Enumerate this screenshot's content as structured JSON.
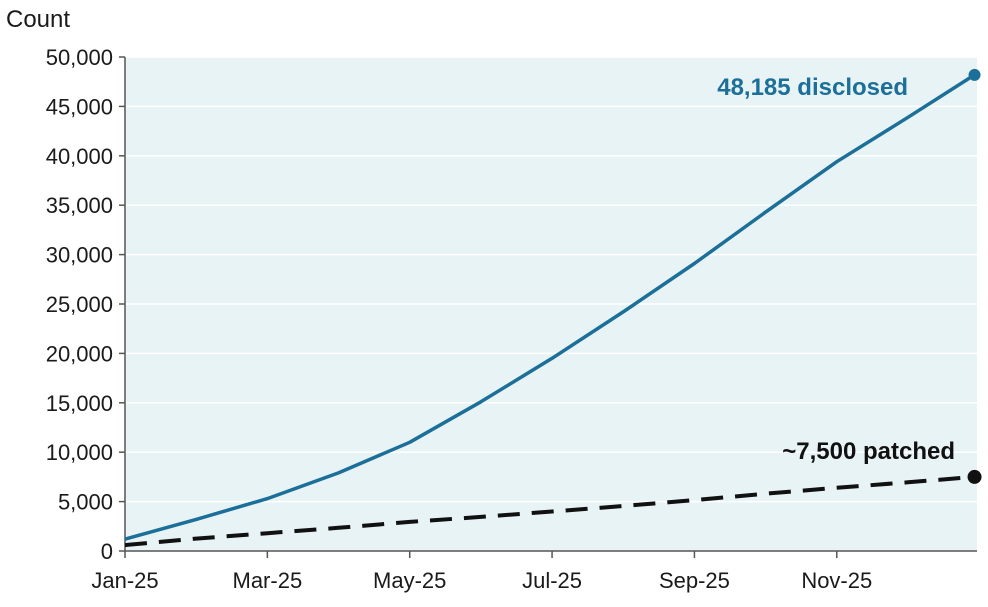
{
  "chart_data": {
    "type": "line",
    "ylabel": "Count",
    "xlabel": "",
    "ylim": [
      0,
      50000
    ],
    "yticks": [
      0,
      5000,
      10000,
      15000,
      20000,
      25000,
      30000,
      35000,
      40000,
      45000,
      50000
    ],
    "ytick_labels": [
      "0",
      "5,000",
      "10,000",
      "15,000",
      "20,000",
      "25,000",
      "30,000",
      "35,000",
      "40,000",
      "45,000",
      "50,000"
    ],
    "xlim": [
      "2025-01",
      "2025-12"
    ],
    "xticks": [
      "2025-01",
      "2025-03",
      "2025-05",
      "2025-07",
      "2025-09",
      "2025-11"
    ],
    "xtick_labels": [
      "Jan-25",
      "Mar-25",
      "May-25",
      "Jul-25",
      "Sep-25",
      "Nov-25"
    ],
    "grid": true,
    "colors": {
      "plot_background": "#e8f3f6",
      "grid": "#ffffff",
      "disclosed": "#1b6f98",
      "patched": "#111111"
    },
    "series": [
      {
        "key": "disclosed",
        "style": "solid",
        "x": [
          "2025-01",
          "2025-02",
          "2025-03",
          "2025-04",
          "2025-05",
          "2025-06",
          "2025-07",
          "2025-08",
          "2025-09",
          "2025-10",
          "2025-11",
          "2025-12"
        ],
        "values": [
          1200,
          3200,
          5300,
          7900,
          11000,
          15100,
          19500,
          24200,
          29100,
          34300,
          39400,
          43900
        ]
      },
      {
        "key": "patched",
        "style": "dashed",
        "x": [
          "2025-01",
          "2025-02",
          "2025-03",
          "2025-04",
          "2025-05",
          "2025-06",
          "2025-07",
          "2025-08",
          "2025-09",
          "2025-10",
          "2025-11",
          "2025-12"
        ],
        "values": [
          600,
          1250,
          1800,
          2350,
          2950,
          3450,
          4000,
          4550,
          5150,
          5800,
          6400,
          6950
        ]
      }
    ],
    "endpoints": [
      {
        "series": "disclosed",
        "x": "2025-12-30",
        "y": 48185
      },
      {
        "series": "patched",
        "x": "2025-12-30",
        "y": 7500
      }
    ],
    "annotations": [
      {
        "series": "disclosed",
        "text": "48,185 disclosed"
      },
      {
        "series": "patched",
        "text": "~7,500 patched"
      }
    ]
  }
}
